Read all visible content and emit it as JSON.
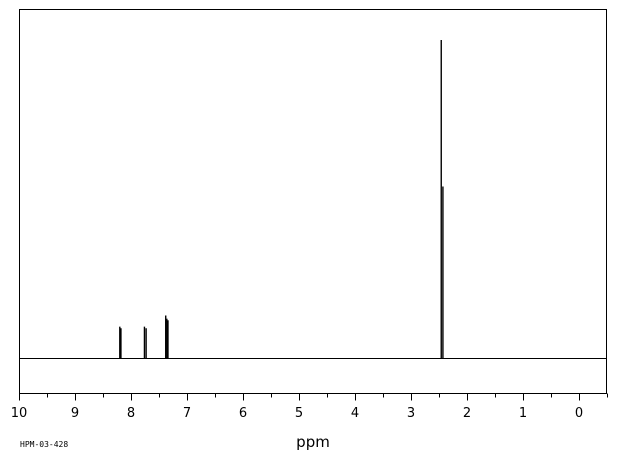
{
  "chart_data": {
    "type": "line",
    "title": "",
    "xlabel": "ppm",
    "ylabel": "",
    "xlim": [
      10,
      -0.5
    ],
    "x_reversed": true,
    "ylim": [
      0,
      1
    ],
    "grid": false,
    "legend": "none",
    "code": "HPM-03-428",
    "tick_labels": [
      "10",
      "9",
      "8",
      "7",
      "6",
      "5",
      "4",
      "3",
      "2",
      "1",
      "0"
    ],
    "tick_values": [
      10,
      9,
      8,
      7,
      6,
      5,
      4,
      3,
      2,
      1,
      0
    ],
    "minor_tick_step": 0.5,
    "peaks": [
      {
        "ppm": 8.2,
        "height": 0.1
      },
      {
        "ppm": 8.18,
        "height": 0.095
      },
      {
        "ppm": 7.76,
        "height": 0.1
      },
      {
        "ppm": 7.73,
        "height": 0.095
      },
      {
        "ppm": 7.38,
        "height": 0.135
      },
      {
        "ppm": 7.36,
        "height": 0.125
      },
      {
        "ppm": 7.34,
        "height": 0.12
      },
      {
        "ppm": 2.46,
        "height": 1.0
      },
      {
        "ppm": 2.43,
        "height": 0.54
      }
    ],
    "line_color": "#000000"
  }
}
